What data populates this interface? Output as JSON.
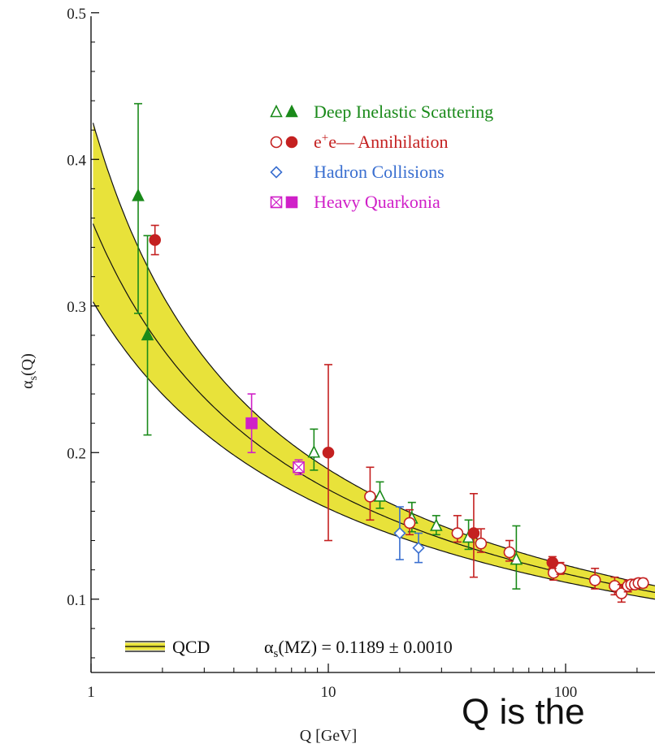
{
  "chart_data": {
    "type": "scatter",
    "xscale": "log",
    "xlim": [
      1,
      250
    ],
    "ylim": [
      0.05,
      0.5
    ],
    "xlabel": "Q [GeV]",
    "ylabel_main": "α",
    "ylabel_sub": "s",
    "ylabel_tail": "(Q)",
    "x_ticks": [
      "1",
      "10",
      "100"
    ],
    "y_ticks": [
      "0.1",
      "0.2",
      "0.3",
      "0.4",
      "0.5"
    ],
    "grid": false,
    "legend_position": "top-center",
    "band": {
      "name": "QCD",
      "annotation_prefix": "α",
      "annotation_sub": "s",
      "annotation_suffix": "(MZ) = 0.1189 ± 0.0010",
      "alpha_mz": 0.1189,
      "error": 0.001,
      "color": "#e8e23a"
    },
    "series": [
      {
        "name": "Deep Inelastic Scattering",
        "color": "#1a8a1a",
        "open": [
          {
            "x": 8.7,
            "y": 0.2,
            "err": [
              0.012,
              0.016
            ]
          },
          {
            "x": 16.5,
            "y": 0.17,
            "err": [
              0.008,
              0.01
            ]
          },
          {
            "x": 22.5,
            "y": 0.155,
            "err": [
              0.009,
              0.011
            ]
          },
          {
            "x": 28.5,
            "y": 0.15,
            "err": [
              0.006,
              0.007
            ]
          },
          {
            "x": 39.0,
            "y": 0.142,
            "err": [
              0.008,
              0.012
            ]
          },
          {
            "x": 62.0,
            "y": 0.127,
            "err": [
              0.02,
              0.023
            ]
          }
        ],
        "filled": [
          {
            "x": 1.58,
            "y": 0.375,
            "err": [
              0.08,
              0.063
            ]
          },
          {
            "x": 1.73,
            "y": 0.28,
            "err": [
              0.068,
              0.068
            ]
          }
        ]
      },
      {
        "name": "e+e— Annihilation",
        "label_base": "e",
        "label_sup": "+",
        "label_mid": "e",
        "label_tail": "—  Annihilation",
        "color": "#c42020",
        "open": [
          {
            "x": 15.0,
            "y": 0.17,
            "err": [
              0.016,
              0.02
            ]
          },
          {
            "x": 22.0,
            "y": 0.152,
            "err": [
              0.008,
              0.009
            ]
          },
          {
            "x": 35.0,
            "y": 0.145,
            "err": [
              0.006,
              0.012
            ]
          },
          {
            "x": 44.0,
            "y": 0.138,
            "err": [
              0.006,
              0.01
            ]
          },
          {
            "x": 58.0,
            "y": 0.132,
            "err": [
              0.006,
              0.008
            ]
          },
          {
            "x": 89.0,
            "y": 0.118,
            "err": [
              0.005,
              0.006
            ]
          },
          {
            "x": 95.0,
            "y": 0.121,
            "err": [
              0.004,
              0.004
            ]
          },
          {
            "x": 133.0,
            "y": 0.113,
            "err": [
              0.006,
              0.008
            ]
          },
          {
            "x": 161.0,
            "y": 0.109,
            "err": [
              0.006,
              0.006
            ]
          },
          {
            "x": 172.0,
            "y": 0.104,
            "err": [
              0.006,
              0.006
            ]
          },
          {
            "x": 183.0,
            "y": 0.109,
            "err": [
              0.004,
              0.004
            ]
          },
          {
            "x": 189.0,
            "y": 0.11,
            "err": [
              0.003,
              0.003
            ]
          },
          {
            "x": 196.0,
            "y": 0.11,
            "err": [
              0.003,
              0.003
            ]
          },
          {
            "x": 203.0,
            "y": 0.111,
            "err": [
              0.003,
              0.003
            ]
          },
          {
            "x": 212.0,
            "y": 0.111,
            "err": [
              0.003,
              0.003
            ]
          }
        ],
        "filled": [
          {
            "x": 1.86,
            "y": 0.345,
            "err": [
              0.01,
              0.01
            ]
          },
          {
            "x": 10.0,
            "y": 0.2,
            "err": [
              0.06,
              0.06
            ]
          },
          {
            "x": 41.0,
            "y": 0.145,
            "err": [
              0.03,
              0.027
            ]
          },
          {
            "x": 88.0,
            "y": 0.125,
            "err": [
              0.004,
              0.004
            ]
          }
        ]
      },
      {
        "name": "Hadron Collisions",
        "color": "#3a6fd0",
        "open": [
          {
            "x": 20.0,
            "y": 0.145,
            "err": [
              0.018,
              0.018
            ]
          },
          {
            "x": 24.0,
            "y": 0.135,
            "err": [
              0.01,
              0.01
            ]
          }
        ],
        "filled": []
      },
      {
        "name": "Heavy Quarkonia",
        "color": "#d020c8",
        "open": [
          {
            "x": 7.5,
            "y": 0.19,
            "err": [
              0.005,
              0.005
            ]
          }
        ],
        "filled": [
          {
            "x": 4.75,
            "y": 0.22,
            "err": [
              0.02,
              0.02
            ]
          }
        ]
      }
    ]
  },
  "caption": "Q is the"
}
